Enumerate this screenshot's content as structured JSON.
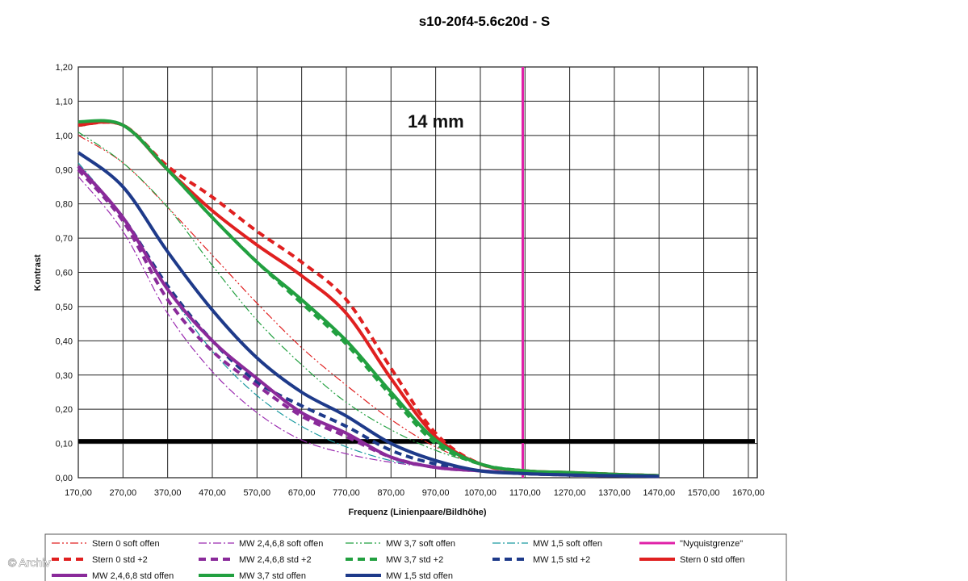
{
  "chart_data": {
    "type": "line",
    "title": "s10-20f4-5.6c20d - S",
    "xlabel": "Frequenz (Linienpaare/Bildhöhe)",
    "ylabel": "Kontrast",
    "annotation": "14 mm",
    "copyright": "© Archiv",
    "xlim": [
      170,
      1690
    ],
    "ylim": [
      0,
      1.2
    ],
    "x_ticks": [
      "170,00",
      "270,00",
      "370,00",
      "470,00",
      "570,00",
      "670,00",
      "770,00",
      "870,00",
      "970,00",
      "1070,00",
      "1170,00",
      "1270,00",
      "1370,00",
      "1470,00",
      "1570,00",
      "1670,00"
    ],
    "y_ticks": [
      "0,00",
      "0,10",
      "0,20",
      "0,30",
      "0,40",
      "0,50",
      "0,60",
      "0,70",
      "0,80",
      "0,90",
      "1,00",
      "1,10",
      "1,20"
    ],
    "grid": true,
    "legend_position": "bottom",
    "reference_lines": [
      {
        "name": "\"Nyquistgrenze\"",
        "orientation": "vertical",
        "value": 1165,
        "color": "#e020a8"
      },
      {
        "name": "",
        "orientation": "horizontal",
        "value": 0.107,
        "color": "#000000"
      }
    ],
    "series": [
      {
        "name": "Stern 0 soft offen",
        "color": "#e02020",
        "style": "dashdotdot",
        "width": 1.2,
        "x": [
          170,
          270,
          370,
          470,
          570,
          670,
          770,
          870,
          970,
          1070,
          1170,
          1270,
          1370,
          1470
        ],
        "y": [
          1.0,
          0.92,
          0.79,
          0.65,
          0.51,
          0.38,
          0.27,
          0.17,
          0.09,
          0.04,
          0.02,
          0.012,
          0.008,
          0.005
        ]
      },
      {
        "name": "MW 2,4,6,8 soft offen",
        "color": "#9a2ab0",
        "style": "dashdot",
        "width": 1.2,
        "x": [
          170,
          270,
          370,
          470,
          570,
          670,
          770,
          870,
          970,
          1070,
          1170,
          1270,
          1370,
          1470
        ],
        "y": [
          0.88,
          0.72,
          0.48,
          0.31,
          0.19,
          0.11,
          0.07,
          0.045,
          0.03,
          0.02,
          0.012,
          0.008,
          0.006,
          0.004
        ]
      },
      {
        "name": "MW 3,7 soft offen",
        "color": "#22a040",
        "style": "dashdotdot",
        "width": 1.2,
        "x": [
          170,
          270,
          370,
          470,
          570,
          670,
          770,
          870,
          970,
          1070,
          1170,
          1270,
          1370,
          1470
        ],
        "y": [
          1.01,
          0.92,
          0.79,
          0.62,
          0.46,
          0.33,
          0.22,
          0.14,
          0.08,
          0.04,
          0.02,
          0.012,
          0.008,
          0.005
        ]
      },
      {
        "name": "MW 1,5 soft offen",
        "color": "#1a9aa0",
        "style": "dashdot",
        "width": 1.2,
        "x": [
          170,
          270,
          370,
          470,
          570,
          670,
          770,
          870,
          970,
          1070,
          1170,
          1270,
          1370,
          1470
        ],
        "y": [
          0.92,
          0.76,
          0.55,
          0.37,
          0.24,
          0.15,
          0.09,
          0.05,
          0.03,
          0.02,
          0.012,
          0.008,
          0.006,
          0.004
        ]
      },
      {
        "name": "\"Nyquistgrenze\"",
        "color": "#e020a8",
        "style": "solid",
        "width": 3,
        "x": [],
        "y": []
      },
      {
        "name": "Stern 0 std +2",
        "color": "#e02020",
        "style": "dashed",
        "width": 4,
        "x": [
          170,
          270,
          370,
          470,
          570,
          670,
          770,
          870,
          970,
          1070,
          1170,
          1270,
          1370,
          1470
        ],
        "y": [
          1.03,
          1.03,
          0.91,
          0.82,
          0.72,
          0.63,
          0.52,
          0.32,
          0.13,
          0.04,
          0.02,
          0.015,
          0.01,
          0.006
        ]
      },
      {
        "name": "MW 2,4,6,8 std +2",
        "color": "#8a2a9a",
        "style": "dashed",
        "width": 4,
        "x": [
          170,
          270,
          370,
          470,
          570,
          670,
          770,
          870,
          970,
          1070,
          1170,
          1270,
          1370,
          1470
        ],
        "y": [
          0.9,
          0.75,
          0.52,
          0.37,
          0.27,
          0.18,
          0.12,
          0.06,
          0.03,
          0.02,
          0.012,
          0.008,
          0.006,
          0.004
        ]
      },
      {
        "name": "MW 3,7 std +2",
        "color": "#22a040",
        "style": "dashed",
        "width": 4,
        "x": [
          170,
          270,
          370,
          470,
          570,
          670,
          770,
          870,
          970,
          1070,
          1170,
          1270,
          1370,
          1470
        ],
        "y": [
          1.03,
          1.03,
          0.9,
          0.76,
          0.63,
          0.51,
          0.39,
          0.24,
          0.1,
          0.04,
          0.02,
          0.015,
          0.01,
          0.006
        ]
      },
      {
        "name": "MW 1,5 std +2",
        "color": "#1e3a8a",
        "style": "dashed",
        "width": 4,
        "x": [
          170,
          270,
          370,
          470,
          570,
          670,
          770,
          870,
          970,
          1070,
          1170,
          1270,
          1370,
          1470
        ],
        "y": [
          0.91,
          0.76,
          0.56,
          0.4,
          0.28,
          0.21,
          0.15,
          0.08,
          0.04,
          0.02,
          0.012,
          0.008,
          0.006,
          0.004
        ]
      },
      {
        "name": "Stern 0 std offen",
        "color": "#e02020",
        "style": "solid",
        "width": 4,
        "x": [
          170,
          270,
          370,
          470,
          570,
          670,
          770,
          870,
          970,
          1070,
          1170,
          1270,
          1370,
          1470
        ],
        "y": [
          1.03,
          1.03,
          0.9,
          0.78,
          0.68,
          0.59,
          0.48,
          0.29,
          0.12,
          0.04,
          0.02,
          0.015,
          0.01,
          0.006
        ]
      },
      {
        "name": "MW 2,4,6,8 std offen",
        "color": "#8a2a9a",
        "style": "solid",
        "width": 4,
        "x": [
          170,
          270,
          370,
          470,
          570,
          670,
          770,
          870,
          970,
          1070,
          1170,
          1270,
          1370,
          1470
        ],
        "y": [
          0.91,
          0.76,
          0.55,
          0.4,
          0.29,
          0.19,
          0.13,
          0.06,
          0.03,
          0.02,
          0.012,
          0.008,
          0.006,
          0.004
        ]
      },
      {
        "name": "MW 3,7 std offen",
        "color": "#22a040",
        "style": "solid",
        "width": 4,
        "x": [
          170,
          270,
          370,
          470,
          570,
          670,
          770,
          870,
          970,
          1070,
          1170,
          1270,
          1370,
          1470
        ],
        "y": [
          1.04,
          1.03,
          0.9,
          0.76,
          0.63,
          0.52,
          0.4,
          0.25,
          0.11,
          0.04,
          0.02,
          0.015,
          0.01,
          0.006
        ]
      },
      {
        "name": "MW 1,5 std offen",
        "color": "#1e3a8a",
        "style": "solid",
        "width": 4,
        "x": [
          170,
          270,
          370,
          470,
          570,
          670,
          770,
          870,
          970,
          1070,
          1170,
          1270,
          1370,
          1470
        ],
        "y": [
          0.95,
          0.85,
          0.66,
          0.49,
          0.35,
          0.25,
          0.18,
          0.1,
          0.05,
          0.02,
          0.012,
          0.008,
          0.006,
          0.004
        ]
      }
    ]
  }
}
